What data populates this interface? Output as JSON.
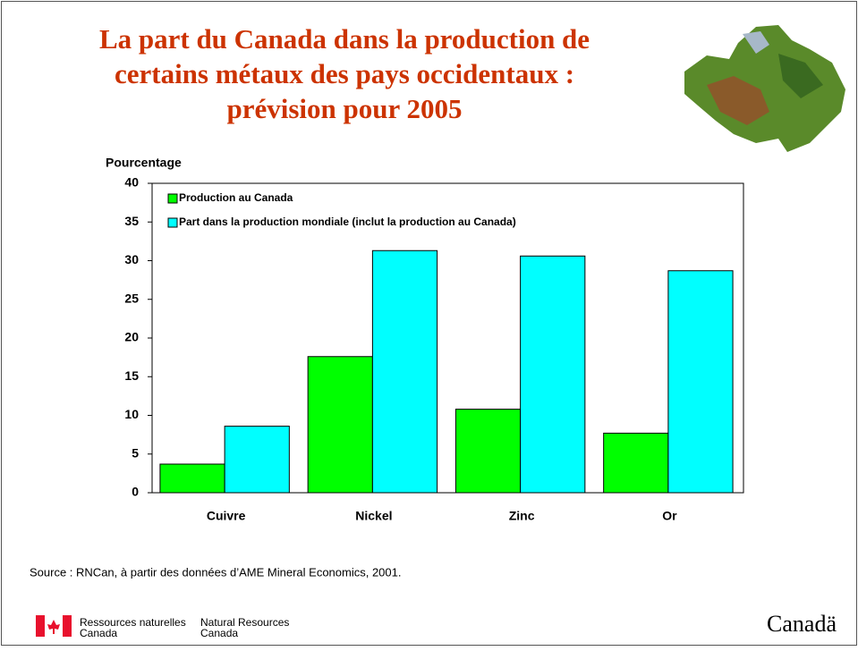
{
  "chart_data": {
    "type": "bar",
    "title": [
      "La part du Canada dans la production de",
      "certains métaux des pays occidentaux :",
      "prévision pour 2005"
    ],
    "y_label": "Pourcentage",
    "categories": [
      "Cuivre",
      "Nickel",
      "Zinc",
      "Or"
    ],
    "series": [
      {
        "name": "Production au Canada",
        "color": "#00ff00",
        "values": [
          3.7,
          17.6,
          10.8,
          7.7
        ]
      },
      {
        "name": "Part dans la production mondiale (inclut la production au Canada)",
        "color": "#00ffff",
        "values": [
          8.6,
          31.3,
          30.6,
          28.7
        ]
      }
    ],
    "ylim": [
      0,
      40
    ],
    "yticks": [
      0,
      5,
      10,
      15,
      20,
      25,
      30,
      35,
      40
    ],
    "grid": false,
    "legend": "top-left"
  },
  "source": "Source : RNCan, à partir des données d’AME Mineral Economics, 2001.",
  "footer": {
    "fr_line1": "Ressources naturelles",
    "fr_line2": "Canada",
    "en_line1": "Natural Resources",
    "en_line2": "Canada",
    "wordmark": "Canadä"
  }
}
